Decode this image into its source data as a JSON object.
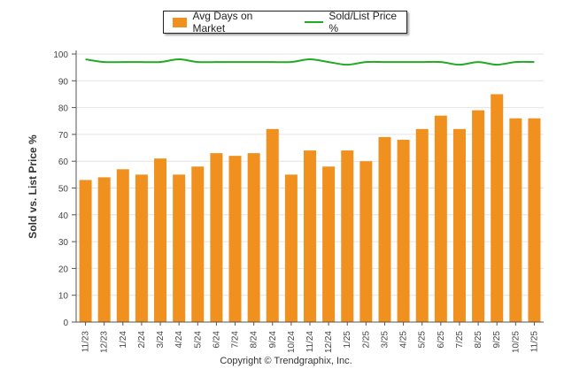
{
  "colors": {
    "bars": "#f0901e",
    "line": "#22aa22",
    "grid": "#e4e4e4",
    "axis": "#555555",
    "text": "#444444"
  },
  "chart_data": {
    "type": "bar",
    "title": "",
    "xlabel": "",
    "ylabel": "Sold vs. List Price %",
    "ylim": [
      0,
      100
    ],
    "yticks": [
      0,
      10,
      20,
      30,
      40,
      50,
      60,
      70,
      80,
      90,
      100
    ],
    "grid": true,
    "legend_position": "top-center",
    "categories": [
      "11/23",
      "12/23",
      "1/24",
      "2/24",
      "3/24",
      "4/24",
      "5/24",
      "6/24",
      "7/24",
      "8/24",
      "9/24",
      "10/24",
      "11/24",
      "12/24",
      "1/25",
      "2/25",
      "3/25",
      "4/25",
      "5/25",
      "6/25",
      "7/25",
      "8/25",
      "9/25",
      "10/25",
      "11/25"
    ],
    "series": [
      {
        "name": "Avg Days on Market",
        "type": "bar",
        "values": [
          53,
          54,
          57,
          55,
          61,
          55,
          58,
          63,
          62,
          63,
          72,
          55,
          64,
          58,
          64,
          60,
          69,
          68,
          72,
          77,
          72,
          79,
          85,
          76,
          76
        ]
      },
      {
        "name": "Sold/List Price %",
        "type": "line",
        "values": [
          98,
          97,
          97,
          97,
          97,
          98,
          97,
          97,
          97,
          97,
          97,
          97,
          98,
          97,
          96,
          97,
          97,
          97,
          97,
          97,
          96,
          97,
          96,
          97,
          97
        ]
      }
    ]
  },
  "footer": "Copyright © Trendgraphix, Inc."
}
